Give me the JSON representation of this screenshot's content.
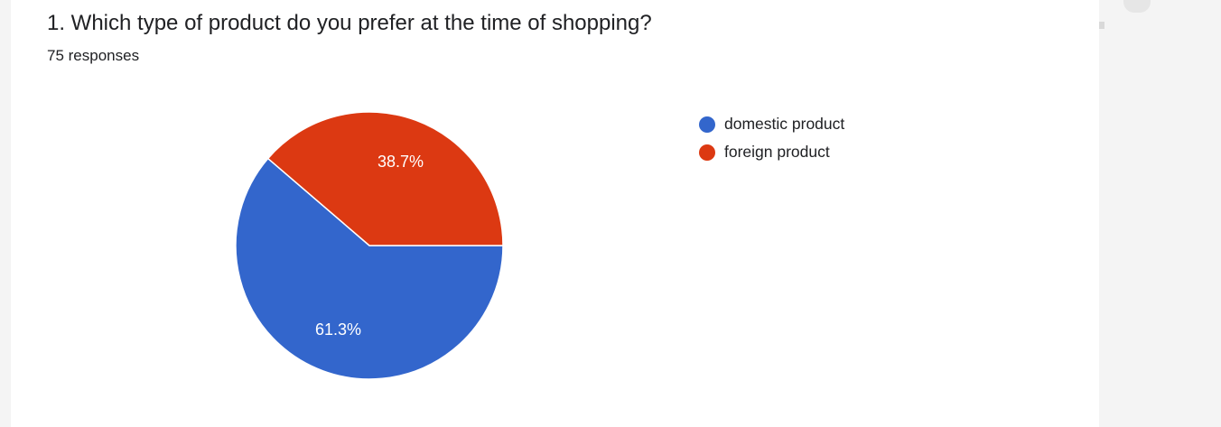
{
  "question": {
    "title": "1. Which type of product do you prefer at the time of shopping?",
    "response_count": "75 responses"
  },
  "chart_data": {
    "type": "pie",
    "categories": [
      "domestic product",
      "foreign product"
    ],
    "values": [
      61.3,
      38.7
    ],
    "labels": [
      "61.3%",
      "38.7%"
    ],
    "colors": [
      "#3366cc",
      "#dc3912"
    ],
    "legend_position": "right"
  }
}
